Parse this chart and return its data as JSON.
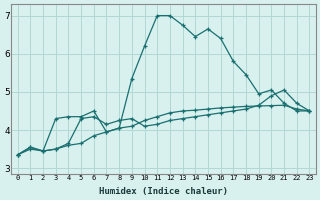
{
  "xlabel": "Humidex (Indice chaleur)",
  "bg_color": "#d8f0ee",
  "grid_color": "#b0d8d5",
  "line_color": "#1a7070",
  "spine_color": "#888888",
  "xlim": [
    -0.5,
    23.5
  ],
  "ylim": [
    2.85,
    7.3
  ],
  "yticks": [
    3,
    4,
    5,
    6,
    7
  ],
  "xticks": [
    0,
    1,
    2,
    3,
    4,
    5,
    6,
    7,
    8,
    9,
    10,
    11,
    12,
    13,
    14,
    15,
    16,
    17,
    18,
    19,
    20,
    21,
    22,
    23
  ],
  "line1_x": [
    0,
    1,
    2,
    3,
    4,
    5,
    6,
    7,
    8,
    9,
    10,
    11,
    12,
    13,
    14,
    15,
    16,
    17,
    18,
    19,
    20,
    21,
    22,
    23
  ],
  "line1_y": [
    3.35,
    3.55,
    3.45,
    3.5,
    3.6,
    3.65,
    3.85,
    3.95,
    4.05,
    4.1,
    4.25,
    4.35,
    4.45,
    4.5,
    4.52,
    4.55,
    4.58,
    4.6,
    4.62,
    4.63,
    4.64,
    4.65,
    4.55,
    4.5
  ],
  "line2_x": [
    0,
    1,
    2,
    3,
    4,
    5,
    6,
    7,
    8,
    9,
    10,
    11,
    12,
    13,
    14,
    15,
    16,
    17,
    18,
    19,
    20,
    21,
    22,
    23
  ],
  "line2_y": [
    3.35,
    3.5,
    3.45,
    3.5,
    3.65,
    4.3,
    4.35,
    4.15,
    4.25,
    4.3,
    4.1,
    4.15,
    4.25,
    4.3,
    4.35,
    4.4,
    4.45,
    4.5,
    4.55,
    4.65,
    4.9,
    5.05,
    4.7,
    4.5
  ],
  "line3_x": [
    0,
    1,
    2,
    3,
    4,
    5,
    6,
    7,
    8,
    9,
    10,
    11,
    12,
    13,
    14,
    15,
    16,
    17,
    18,
    19,
    20,
    21,
    22,
    23
  ],
  "line3_y": [
    3.35,
    3.55,
    3.45,
    4.3,
    4.35,
    4.35,
    4.5,
    3.95,
    4.05,
    5.35,
    6.2,
    7.0,
    7.0,
    6.75,
    6.45,
    6.65,
    6.4,
    5.8,
    5.45,
    4.95,
    5.05,
    4.7,
    4.5,
    4.5
  ],
  "xlabel_fontsize": 6.5,
  "tick_fontsize_x": 5.0,
  "tick_fontsize_y": 6.5
}
